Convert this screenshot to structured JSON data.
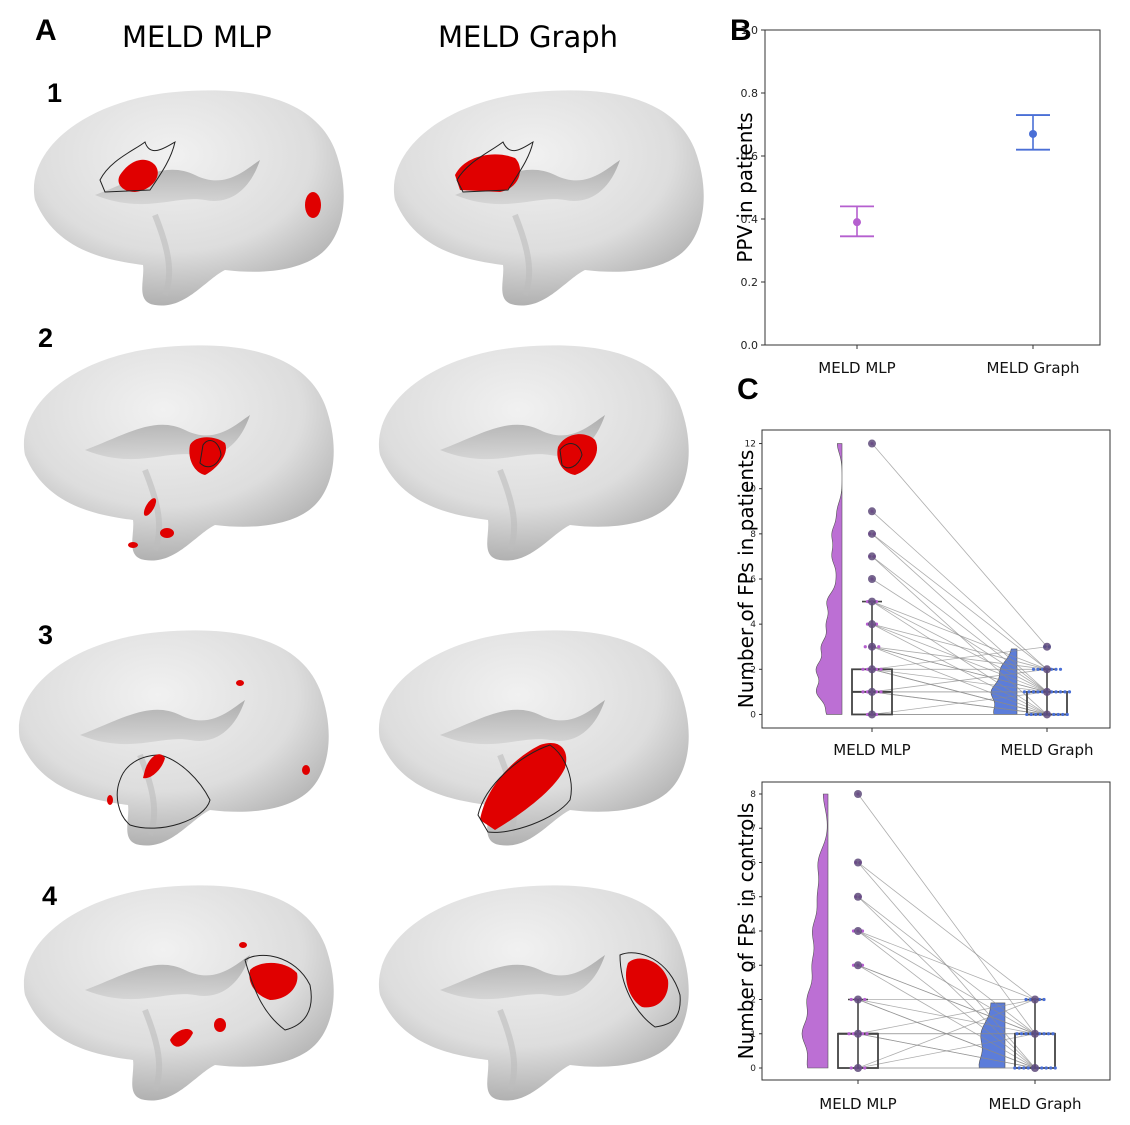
{
  "panel_a": {
    "letter": "A",
    "columns": [
      "MELD MLP",
      "MELD Graph"
    ],
    "rows": [
      "1",
      "2",
      "3",
      "4"
    ]
  },
  "panel_b": {
    "letter": "B"
  },
  "panel_c": {
    "letter": "C"
  },
  "colors": {
    "mlp": "#b55fcf",
    "graph": "#4a6fd6",
    "lesion": "#e00000",
    "brain": "#d9d9d9"
  },
  "chart_data": [
    {
      "id": "ppv",
      "type": "scatter",
      "title": "",
      "xlabel": "",
      "ylabel": "PPV in patients",
      "categories": [
        "MELD MLP",
        "MELD Graph"
      ],
      "values": [
        0.39,
        0.67
      ],
      "err_low": [
        0.345,
        0.62
      ],
      "err_high": [
        0.44,
        0.73
      ],
      "ylim": [
        0,
        1
      ],
      "yticks": [
        0.0,
        0.2,
        0.4,
        0.6,
        0.8,
        1.0
      ],
      "ytick_labels": [
        "0.0",
        "0.2",
        "0.4",
        "0.6",
        "0.8",
        "1.0"
      ]
    },
    {
      "id": "fp_patients",
      "type": "scatter",
      "ylabel": "Number of FPs in patients",
      "categories": [
        "MELD MLP",
        "MELD Graph"
      ],
      "ylim": [
        -0.6,
        12.6
      ],
      "yticks": [
        0,
        2,
        4,
        6,
        8,
        10,
        12
      ],
      "ytick_labels": [
        "0",
        "2",
        "4",
        "6",
        "8",
        "10",
        "12"
      ],
      "pairs": [
        [
          12,
          3
        ],
        [
          9,
          2
        ],
        [
          8,
          1
        ],
        [
          8,
          2
        ],
        [
          7,
          1
        ],
        [
          7,
          0
        ],
        [
          6,
          1
        ],
        [
          5,
          2
        ],
        [
          5,
          0
        ],
        [
          5,
          1
        ],
        [
          4,
          1
        ],
        [
          4,
          0
        ],
        [
          4,
          2
        ],
        [
          3,
          1
        ],
        [
          3,
          0
        ],
        [
          3,
          2
        ],
        [
          2,
          0
        ],
        [
          2,
          1
        ],
        [
          2,
          3
        ],
        [
          1,
          0
        ],
        [
          1,
          1
        ],
        [
          1,
          2
        ],
        [
          0,
          0
        ],
        [
          0,
          1
        ],
        [
          2,
          0
        ],
        [
          1,
          0
        ],
        [
          0,
          0
        ],
        [
          3,
          1
        ],
        [
          2,
          2
        ],
        [
          1,
          1
        ]
      ],
      "box_mlp": {
        "q1": 0,
        "median": 1,
        "q3": 2,
        "whisker_low": 0,
        "whisker_high": 5
      },
      "box_graph": {
        "q1": 0,
        "median": 0,
        "q3": 1,
        "whisker_low": 0,
        "whisker_high": 2
      }
    },
    {
      "id": "fp_controls",
      "type": "scatter",
      "ylabel": "Number of FPs in controls",
      "categories": [
        "MELD MLP",
        "MELD Graph"
      ],
      "ylim": [
        -0.35,
        8.35
      ],
      "yticks": [
        0,
        1,
        2,
        3,
        4,
        5,
        6,
        7,
        8
      ],
      "ytick_labels": [
        "0",
        "1",
        "2",
        "3",
        "4",
        "5",
        "6",
        "7",
        "8"
      ],
      "pairs": [
        [
          8,
          1
        ],
        [
          6,
          2
        ],
        [
          6,
          0
        ],
        [
          5,
          1
        ],
        [
          5,
          0
        ],
        [
          4,
          2
        ],
        [
          4,
          1
        ],
        [
          4,
          0
        ],
        [
          3,
          1
        ],
        [
          3,
          0
        ],
        [
          2,
          0
        ],
        [
          2,
          1
        ],
        [
          2,
          2
        ],
        [
          1,
          0
        ],
        [
          1,
          1
        ],
        [
          1,
          2
        ],
        [
          0,
          0
        ],
        [
          0,
          1
        ],
        [
          2,
          0
        ],
        [
          1,
          0
        ],
        [
          0,
          0
        ],
        [
          3,
          1
        ],
        [
          1,
          1
        ],
        [
          0,
          2
        ]
      ],
      "box_mlp": {
        "q1": 0,
        "median": 1,
        "q3": 1,
        "whisker_low": 0,
        "whisker_high": 2
      },
      "box_graph": {
        "q1": 0,
        "median": 1,
        "q3": 1,
        "whisker_low": 0,
        "whisker_high": 2
      }
    }
  ]
}
